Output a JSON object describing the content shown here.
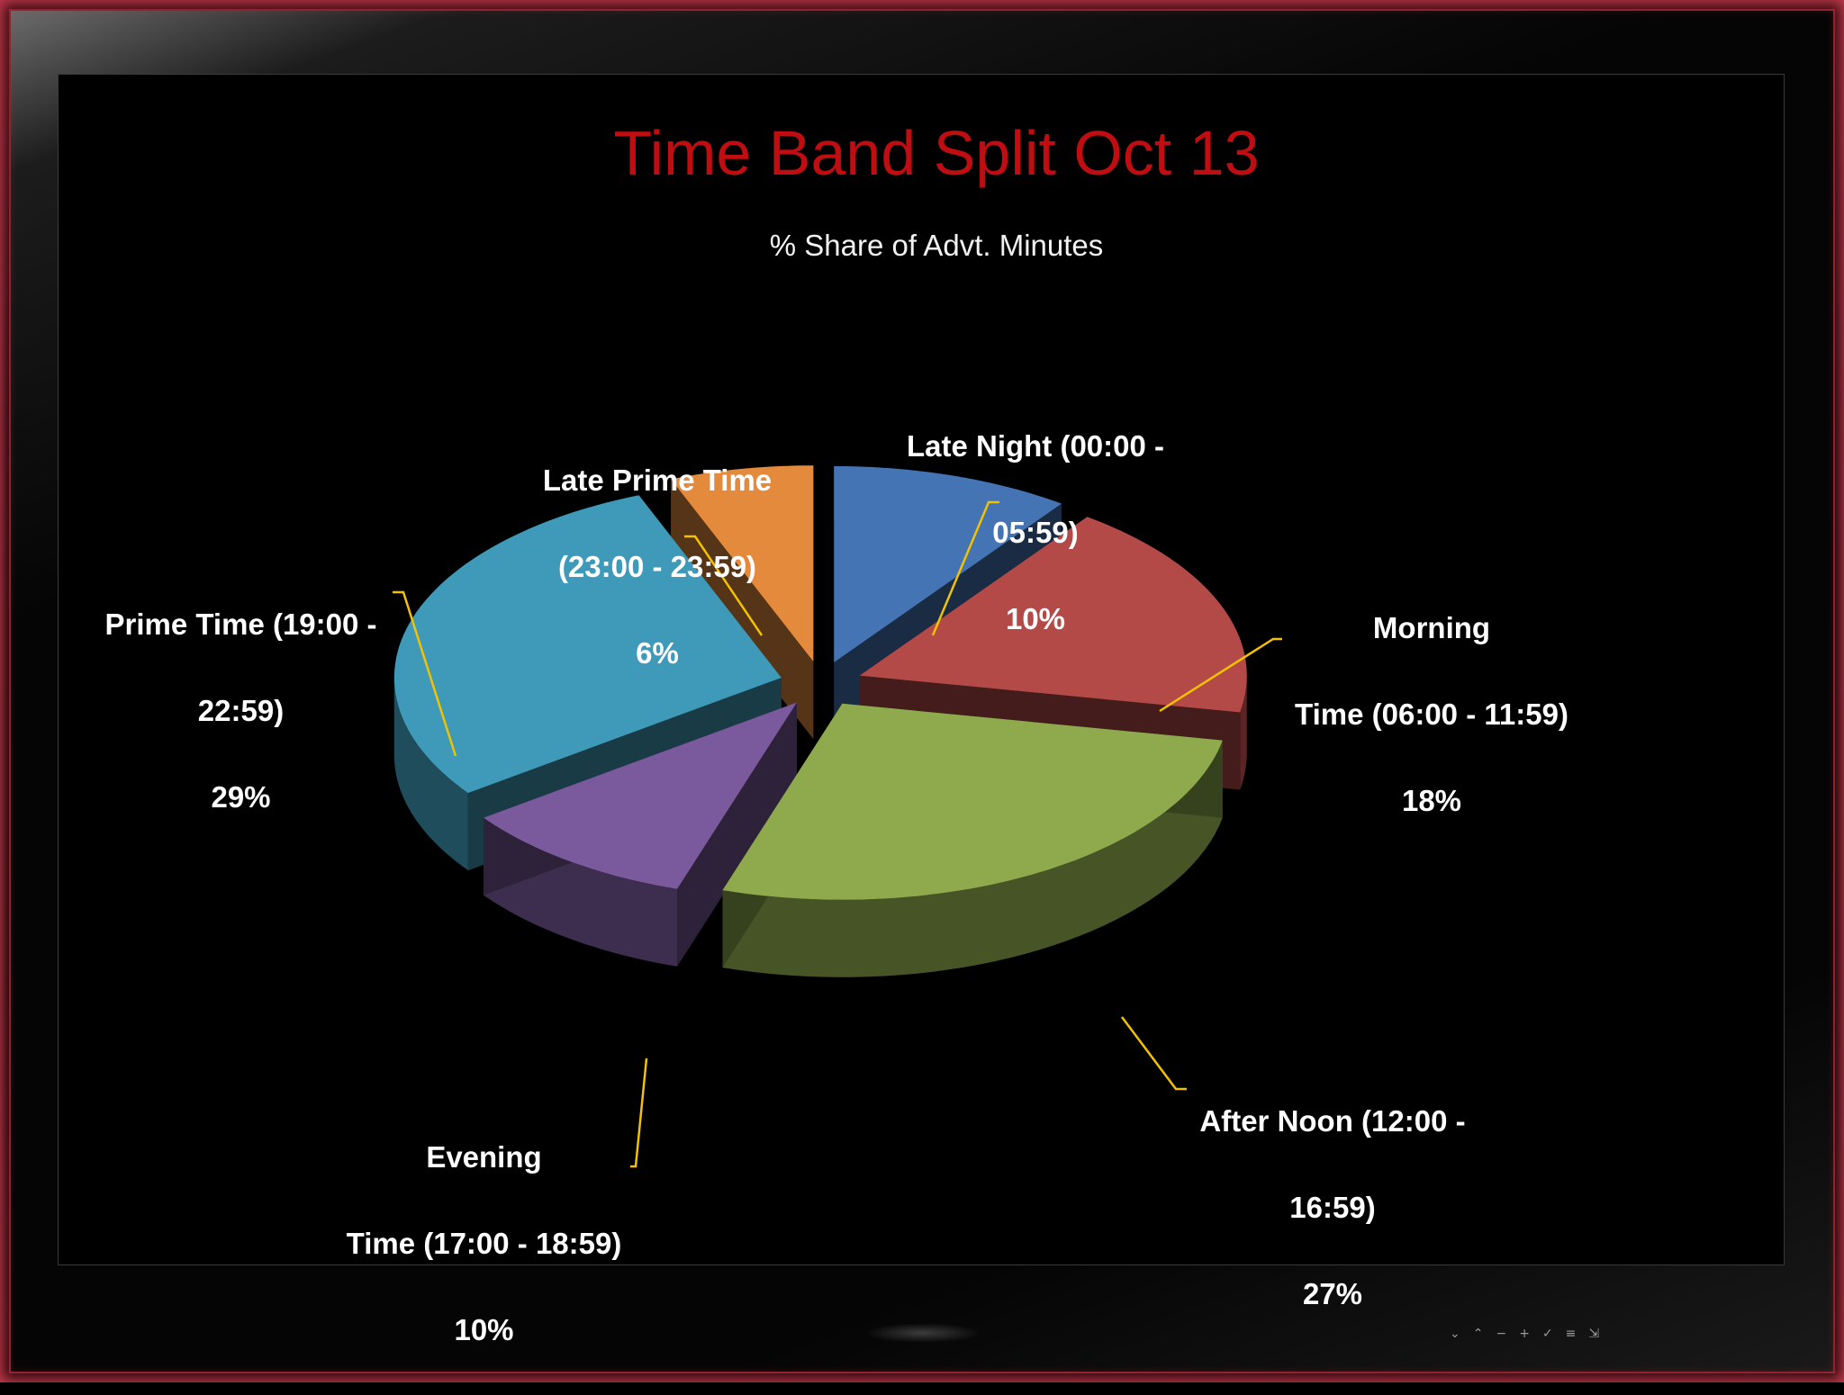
{
  "chart_data": {
    "type": "pie",
    "title": "Time Band Split Oct 13",
    "subtitle": "% Share of Advt. Minutes",
    "slices": [
      {
        "label": "Late Night (00:00 - 05:59)",
        "value": 10,
        "value_label": "10%",
        "color": "#4574b4"
      },
      {
        "label": "Morning Time (06:00 - 11:59)",
        "value": 18,
        "value_label": "18%",
        "color": "#b44a48"
      },
      {
        "label": "After Noon (12:00 - 16:59)",
        "value": 27,
        "value_label": "27%",
        "color": "#8eaa4c"
      },
      {
        "label": "Evening Time (17:00 - 18:59)",
        "value": 10,
        "value_label": "10%",
        "color": "#7a5a9c"
      },
      {
        "label": "Prime Time (19:00 - 22:59)",
        "value": 29,
        "value_label": "29%",
        "color": "#3e9ab8"
      },
      {
        "label": "Late Prime Time (23:00 - 23:59)",
        "value": 6,
        "value_label": "6%",
        "color": "#e38a3c"
      }
    ],
    "start_angle": "12 o'clock",
    "direction": "clockwise",
    "style": "3D exploded pie",
    "leader_line_color": "#f2c200",
    "label_color": "#ffffff"
  },
  "labels": [
    {
      "line1": "Late Night (00:00 -",
      "line2": "05:59)",
      "line3": "10%"
    },
    {
      "line1": "Morning",
      "line2": "Time (06:00 - 11:59)",
      "line3": "18%"
    },
    {
      "line1": "After Noon (12:00 -",
      "line2": "16:59)",
      "line3": "27%"
    },
    {
      "line1": "Evening",
      "line2": "Time (17:00 - 18:59)",
      "line3": "10%"
    },
    {
      "line1": "Prime Time (19:00 -",
      "line2": "22:59)",
      "line3": "29%"
    },
    {
      "line1": "Late Prime Time",
      "line2": "(23:00 - 23:59)",
      "line3": "6%"
    }
  ],
  "colors": {
    "title": "#c00d12",
    "background": "#000000",
    "frame_accent": "#c0394b"
  }
}
